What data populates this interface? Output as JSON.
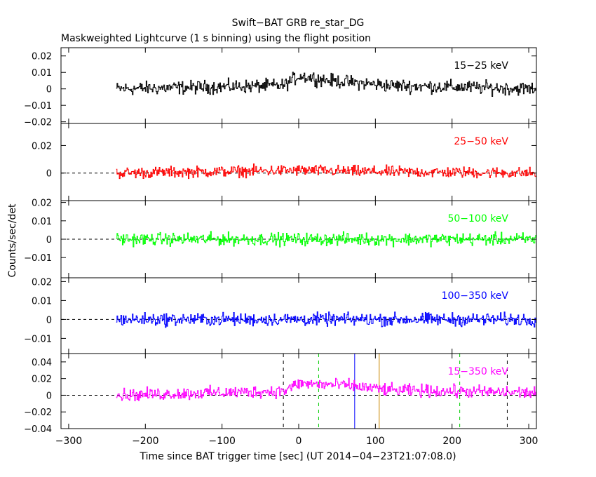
{
  "figure": {
    "title": "Swift−BAT GRB re_star_DG",
    "subtitle": "Maskweighted Lightcurve (1 s binning) using the flight position",
    "xlabel": "Time since BAT trigger time [sec] (UT 2014−04−23T21:07:08.0)",
    "ylabel": "Counts/sec/det"
  },
  "chart_data": [
    {
      "type": "line",
      "band": "15−25 keV",
      "color": "#000000",
      "xlim": [
        -310,
        310
      ],
      "ylim": [
        -0.021,
        0.025
      ],
      "yticks": [
        -0.02,
        -0.01,
        0,
        0.01,
        0.02
      ],
      "ytick_labels": [
        "−0.02",
        "−0.01",
        "0",
        "0.01",
        "0.02"
      ],
      "data_start": -238,
      "data_end": 310,
      "noise_amplitude": 0.006,
      "trend": [
        {
          "x": -238,
          "y": 0.0
        },
        {
          "x": -20,
          "y": 0.002
        },
        {
          "x": 0,
          "y": 0.008
        },
        {
          "x": 40,
          "y": 0.005
        },
        {
          "x": 120,
          "y": 0.002
        },
        {
          "x": 310,
          "y": 0.0
        }
      ],
      "zero_line": false,
      "markers": []
    },
    {
      "type": "line",
      "band": "25−50 keV",
      "color": "#ff0000",
      "xlim": [
        -310,
        310
      ],
      "ylim": [
        -0.02,
        0.036
      ],
      "yticks": [
        0,
        0.02
      ],
      "ytick_labels": [
        "0",
        "0.02"
      ],
      "data_start": -238,
      "data_end": 310,
      "noise_amplitude": 0.006,
      "trend": [
        {
          "x": -238,
          "y": 0.0
        },
        {
          "x": 0,
          "y": 0.002
        },
        {
          "x": 100,
          "y": 0.001
        },
        {
          "x": 310,
          "y": 0.0
        }
      ],
      "zero_line": true,
      "markers": []
    },
    {
      "type": "line",
      "band": "50−100 keV",
      "color": "#00ff00",
      "xlim": [
        -310,
        310
      ],
      "ylim": [
        -0.021,
        0.021
      ],
      "yticks": [
        -0.01,
        0,
        0.01,
        0.02
      ],
      "ytick_labels": [
        "−0.01",
        "0",
        "0.01",
        "0.02"
      ],
      "data_start": -238,
      "data_end": 310,
      "noise_amplitude": 0.005,
      "trend": [
        {
          "x": -238,
          "y": 0.0
        },
        {
          "x": 310,
          "y": 0.0
        }
      ],
      "zero_line": true,
      "markers": []
    },
    {
      "type": "line",
      "band": "100−350 keV",
      "color": "#0000ff",
      "xlim": [
        -310,
        310
      ],
      "ylim": [
        -0.018,
        0.022
      ],
      "yticks": [
        -0.01,
        0,
        0.01,
        0.02
      ],
      "ytick_labels": [
        "−0.01",
        "0",
        "0.01",
        "0.02"
      ],
      "data_start": -238,
      "data_end": 310,
      "noise_amplitude": 0.005,
      "trend": [
        {
          "x": -238,
          "y": 0.0
        },
        {
          "x": 310,
          "y": 0.0
        }
      ],
      "zero_line": true,
      "markers": []
    },
    {
      "type": "line",
      "band": "15−350 keV",
      "color": "#ff00ff",
      "xlim": [
        -310,
        310
      ],
      "ylim": [
        -0.04,
        0.05
      ],
      "yticks": [
        -0.04,
        -0.02,
        0,
        0.02,
        0.04
      ],
      "ytick_labels": [
        "−0.04",
        "−0.02",
        "0",
        "0.02",
        "0.04"
      ],
      "data_start": -238,
      "data_end": 310,
      "noise_amplitude": 0.011,
      "trend": [
        {
          "x": -238,
          "y": 0.0
        },
        {
          "x": -20,
          "y": 0.005
        },
        {
          "x": 0,
          "y": 0.014
        },
        {
          "x": 60,
          "y": 0.012
        },
        {
          "x": 120,
          "y": 0.006
        },
        {
          "x": 310,
          "y": 0.003
        }
      ],
      "zero_line": true,
      "markers": [
        {
          "x": -20,
          "color": "#000000",
          "style": "dashed"
        },
        {
          "x": 26,
          "color": "#00cc00",
          "style": "dashed"
        },
        {
          "x": 73,
          "color": "#0000ff",
          "style": "solid"
        },
        {
          "x": 105,
          "color": "#cc8800",
          "style": "solid"
        },
        {
          "x": 210,
          "color": "#00cc00",
          "style": "dashed"
        },
        {
          "x": 272,
          "color": "#000000",
          "style": "dashed"
        }
      ]
    }
  ],
  "xaxis": {
    "ticks": [
      -300,
      -200,
      -100,
      0,
      100,
      200,
      300
    ],
    "tick_labels": [
      "−300",
      "−200",
      "−100",
      "0",
      "100",
      "200",
      "300"
    ]
  }
}
